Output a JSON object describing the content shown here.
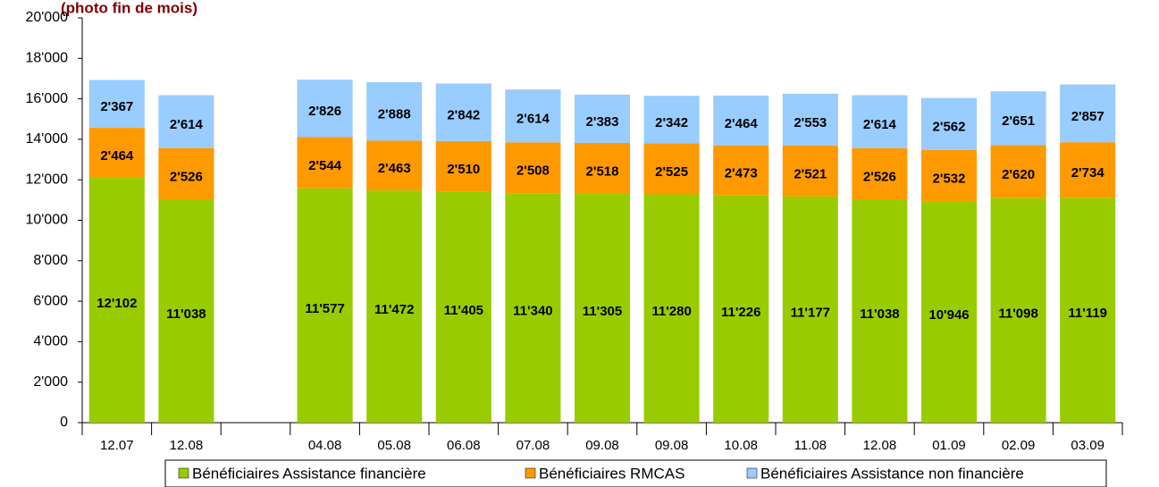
{
  "chart_data": {
    "type": "stacked_bar",
    "title": "(photo fin de mois)",
    "categories": [
      "12.07",
      "12.08",
      null,
      "04.08",
      "05.08",
      "06.08",
      "07.08",
      "09.08",
      "09.08",
      "10.08",
      "11.08",
      "12.08",
      "01.09",
      "02.09",
      "03.09"
    ],
    "series": [
      {
        "name": "Bénéficiaires Assistance financière",
        "color": "#99cc00",
        "values": [
          12102,
          11038,
          null,
          11577,
          11472,
          11405,
          11340,
          11305,
          11280,
          11226,
          11177,
          11038,
          10946,
          11098,
          11119
        ],
        "value_labels": [
          "12'102",
          "11'038",
          null,
          "11'577",
          "11'472",
          "11'405",
          "11'340",
          "11'305",
          "11'280",
          "11'226",
          "11'177",
          "11'038",
          "10'946",
          "11'098",
          "11'119"
        ]
      },
      {
        "name": "Bénéficiaires RMCAS",
        "color": "#ff9900",
        "values": [
          2464,
          2526,
          null,
          2544,
          2463,
          2510,
          2508,
          2518,
          2525,
          2473,
          2521,
          2526,
          2532,
          2620,
          2734
        ],
        "value_labels": [
          "2'464",
          "2'526",
          null,
          "2'544",
          "2'463",
          "2'510",
          "2'508",
          "2'518",
          "2'525",
          "2'473",
          "2'521",
          "2'526",
          "2'532",
          "2'620",
          "2'734"
        ]
      },
      {
        "name": "Bénéficiaires Assistance non financière",
        "color": "#99ccff",
        "values": [
          2367,
          2614,
          null,
          2826,
          2888,
          2842,
          2614,
          2383,
          2342,
          2464,
          2553,
          2614,
          2562,
          2651,
          2857
        ],
        "value_labels": [
          "2'367",
          "2'614",
          null,
          "2'826",
          "2'888",
          "2'842",
          "2'614",
          "2'383",
          "2'342",
          "2'464",
          "2'553",
          "2'614",
          "2'562",
          "2'651",
          "2'857"
        ]
      }
    ],
    "ylim": [
      0,
      20000
    ],
    "yticks": [
      0,
      {
        "value": 2000,
        "label": "2'000"
      },
      {
        "value": 4000,
        "label": "4'000"
      },
      {
        "value": 6000,
        "label": "6'000"
      },
      {
        "value": 8000,
        "label": "8'000"
      },
      {
        "value": 10000,
        "label": "10'000"
      },
      {
        "value": 12000,
        "label": "12'000"
      },
      {
        "value": 14000,
        "label": "14'000"
      },
      {
        "value": 16000,
        "label": "16'000"
      },
      {
        "value": 18000,
        "label": "18'000"
      },
      {
        "value": 20000,
        "label": "20'000"
      }
    ],
    "legend": "bottom"
  }
}
